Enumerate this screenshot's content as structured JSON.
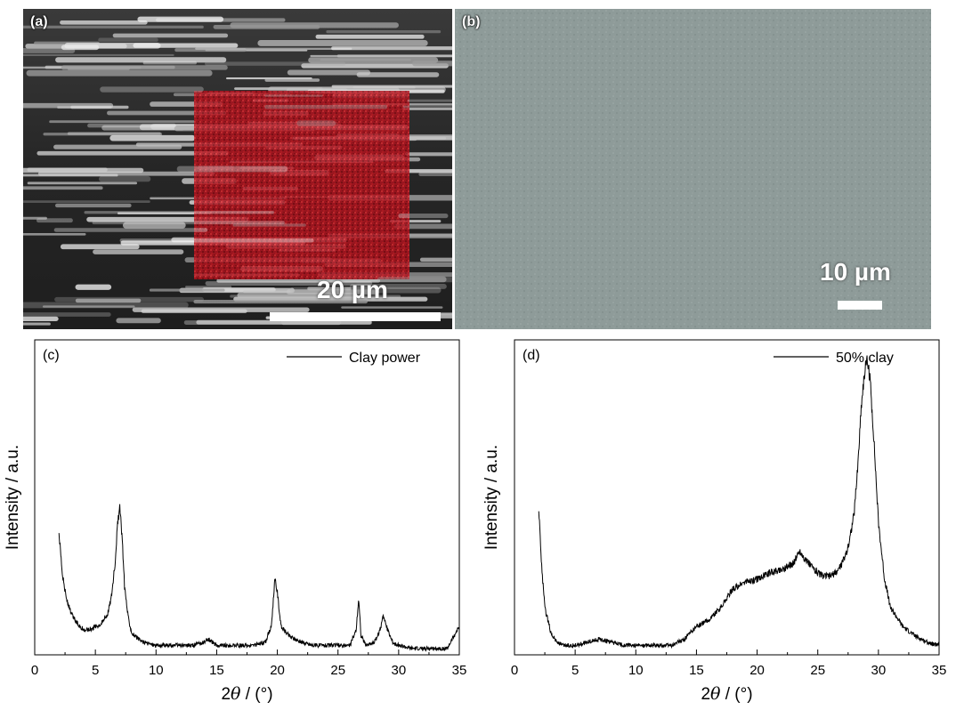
{
  "panels": {
    "a": {
      "letter": "(a)",
      "scale_label": "20 µm"
    },
    "b": {
      "letter": "(b)",
      "scale_label": "10 µm"
    }
  },
  "chart_data": [
    {
      "type": "line",
      "panel_label": "(c)",
      "xlabel_prefix": "2",
      "xlabel_theta": "θ",
      "xlabel_suffix": " / (°)",
      "ylabel": "Intensity / a.u.",
      "xlim": [
        0,
        35
      ],
      "ylim": [
        0,
        100
      ],
      "x_ticks": [
        0,
        5,
        10,
        15,
        20,
        25,
        30,
        35
      ],
      "legend": "Clay power",
      "legend_position": "top-right",
      "series": [
        {
          "name": "Clay power",
          "x": [
            2.0,
            2.3,
            2.6,
            3.0,
            3.5,
            4.0,
            4.5,
            5.0,
            5.5,
            6.0,
            6.3,
            6.6,
            6.8,
            7.0,
            7.2,
            7.4,
            7.7,
            8.0,
            8.5,
            9.0,
            10,
            11,
            12,
            13,
            14,
            14.3,
            15,
            16,
            17,
            18,
            19,
            19.5,
            19.8,
            20.0,
            20.3,
            21,
            22,
            23,
            24,
            25,
            26,
            26.5,
            26.7,
            26.9,
            27.3,
            28,
            28.5,
            28.7,
            29.0,
            29.5,
            30,
            31,
            32,
            33,
            34,
            35
          ],
          "y": [
            39,
            25,
            18,
            13,
            10,
            8,
            8,
            9,
            10,
            13,
            18,
            28,
            40,
            47,
            38,
            22,
            12,
            7,
            5,
            4,
            3,
            3,
            3,
            3,
            4,
            5,
            3,
            3,
            3,
            3,
            4,
            9,
            24,
            20,
            9,
            6,
            4,
            3,
            3,
            3,
            3,
            8,
            18,
            6,
            3,
            4,
            8,
            13,
            9,
            4,
            3,
            2,
            2,
            2,
            2,
            9
          ]
        }
      ]
    },
    {
      "type": "line",
      "panel_label": "(d)",
      "xlabel_prefix": "2",
      "xlabel_theta": "θ",
      "xlabel_suffix": " / (°)",
      "ylabel": "Intensity / a.u.",
      "xlim": [
        0,
        35
      ],
      "ylim": [
        0,
        100
      ],
      "x_ticks": [
        0,
        5,
        10,
        15,
        20,
        25,
        30,
        35
      ],
      "legend": "50% clay",
      "legend_position": "top-right",
      "series": [
        {
          "name": "50% clay",
          "x": [
            2.0,
            2.2,
            2.5,
            3.0,
            3.5,
            4.0,
            5.0,
            6.0,
            7.0,
            8.0,
            9.0,
            10,
            11,
            12,
            13,
            14,
            15,
            16,
            17,
            17.5,
            18,
            19,
            20,
            21,
            22,
            22.5,
            23,
            23.5,
            24,
            24.5,
            25,
            25.5,
            26,
            26.5,
            27,
            27.5,
            28,
            28.3,
            28.6,
            28.9,
            29.1,
            29.3,
            29.6,
            30,
            30.5,
            31,
            32,
            33,
            34,
            35
          ],
          "y": [
            47,
            30,
            15,
            7,
            4,
            3,
            3,
            4,
            5,
            4,
            3,
            3,
            3,
            3,
            3,
            5,
            9,
            11,
            15,
            18,
            21,
            23,
            24,
            26,
            27,
            28,
            29,
            33,
            30,
            28,
            26,
            25,
            25,
            26,
            29,
            34,
            45,
            60,
            80,
            91,
            93,
            88,
            70,
            42,
            24,
            15,
            9,
            6,
            4,
            3
          ]
        }
      ]
    }
  ]
}
